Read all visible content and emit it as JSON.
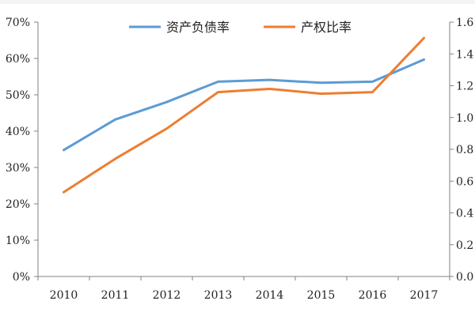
{
  "chart_data": {
    "type": "line",
    "title": "",
    "x": [
      "2010",
      "2011",
      "2012",
      "2013",
      "2014",
      "2015",
      "2016",
      "2017"
    ],
    "y_left": {
      "ylim": [
        0,
        70
      ],
      "ticks": [
        "0%",
        "10%",
        "20%",
        "30%",
        "40%",
        "50%",
        "60%",
        "70%"
      ]
    },
    "y_right": {
      "ylim": [
        0.0,
        1.6
      ],
      "ticks": [
        "0.0",
        "0.2",
        "0.4",
        "0.6",
        "0.8",
        "1.0",
        "1.2",
        "1.4",
        "1.6"
      ]
    },
    "series": [
      {
        "name": "资产负债率",
        "axis": "left",
        "color": "#5b9bd5",
        "values": [
          34.8,
          43.2,
          48.0,
          53.6,
          54.1,
          53.3,
          53.6,
          59.7
        ]
      },
      {
        "name": "产权比率",
        "axis": "right",
        "color": "#ed7d31",
        "values": [
          0.53,
          0.74,
          0.93,
          1.16,
          1.18,
          1.15,
          1.16,
          1.5
        ]
      }
    ],
    "legend": "top-center",
    "grid": false
  }
}
